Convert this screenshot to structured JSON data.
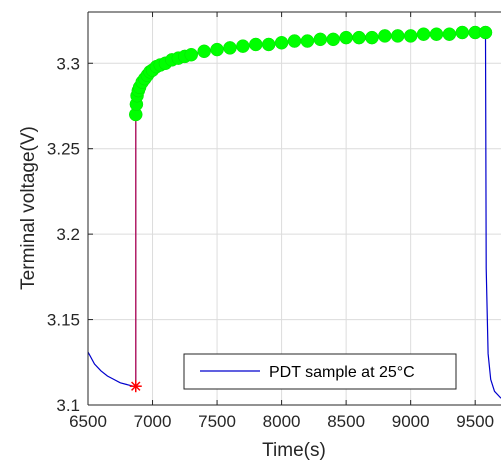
{
  "chart_data": {
    "type": "line",
    "title": "",
    "xlabel": "Time(s)",
    "ylabel": "Terminal voltage(V)",
    "xlim": [
      6500,
      9700
    ],
    "ylim": [
      3.1,
      3.33
    ],
    "xticks": [
      6500,
      7000,
      7500,
      8000,
      8500,
      9000,
      9500
    ],
    "yticks": [
      3.1,
      3.15,
      3.2,
      3.25,
      3.3
    ],
    "xtick_labels": [
      "6500",
      "7000",
      "7500",
      "8000",
      "8500",
      "9000",
      "9500"
    ],
    "ytick_labels": [
      "3.1",
      "3.15",
      "3.2",
      "3.25",
      "3.3"
    ],
    "grid": true,
    "legend_position": "bottom-right",
    "series": [
      {
        "name": "PDT sample at 25°C",
        "color": "#0000cd",
        "x": [
          6500,
          6550,
          6600,
          6650,
          6700,
          6750,
          6800,
          6850,
          6870,
          6870,
          6880,
          6900,
          6950,
          7000,
          7100,
          7200,
          7400,
          7600,
          7800,
          8000,
          8300,
          8600,
          9000,
          9300,
          9580,
          9585,
          9600,
          9620,
          9650,
          9700
        ],
        "y": [
          3.131,
          3.124,
          3.12,
          3.117,
          3.115,
          3.113,
          3.112,
          3.111,
          3.111,
          3.27,
          3.28,
          3.285,
          3.292,
          3.296,
          3.3,
          3.303,
          3.307,
          3.309,
          3.311,
          3.312,
          3.314,
          3.315,
          3.316,
          3.317,
          3.318,
          3.18,
          3.13,
          3.115,
          3.108,
          3.104
        ]
      },
      {
        "name": "",
        "color": "#c8124a",
        "marker": "line",
        "x": [
          6870,
          6870
        ],
        "y": [
          3.111,
          3.27
        ]
      },
      {
        "name": "",
        "color": "#ff0000",
        "marker": "asterisk",
        "x": [
          6870
        ],
        "y": [
          3.111
        ]
      },
      {
        "name": "",
        "color": "#00ff00",
        "marker": "circle",
        "x": [
          6870,
          6875,
          6880,
          6890,
          6900,
          6920,
          6940,
          6960,
          6980,
          7000,
          7030,
          7060,
          7100,
          7150,
          7200,
          7250,
          7300,
          7400,
          7500,
          7600,
          7700,
          7800,
          7900,
          8000,
          8100,
          8200,
          8300,
          8400,
          8500,
          8600,
          8700,
          8800,
          8900,
          9000,
          9100,
          9200,
          9300,
          9400,
          9500,
          9580
        ],
        "y": [
          3.27,
          3.276,
          3.281,
          3.284,
          3.286,
          3.289,
          3.291,
          3.293,
          3.295,
          3.296,
          3.298,
          3.299,
          3.3,
          3.302,
          3.303,
          3.304,
          3.305,
          3.307,
          3.308,
          3.309,
          3.31,
          3.311,
          3.311,
          3.312,
          3.313,
          3.313,
          3.314,
          3.314,
          3.315,
          3.315,
          3.315,
          3.316,
          3.316,
          3.316,
          3.317,
          3.317,
          3.317,
          3.318,
          3.318,
          3.318
        ]
      }
    ],
    "legend_text": "PDT sample at 25°C"
  }
}
